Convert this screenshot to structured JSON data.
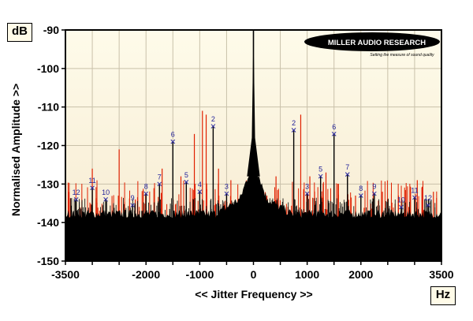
{
  "chart_data": {
    "type": "line",
    "title": "",
    "xlabel": "<< Jitter Frequency >>",
    "ylabel": "Normalised Amplitude >>",
    "x_unit": "Hz",
    "y_unit": "dB",
    "xlim": [
      -3500,
      3500
    ],
    "ylim": [
      -150,
      -90
    ],
    "x_ticks": [
      -3500,
      -2000,
      -1000,
      0,
      1000,
      2000,
      3500
    ],
    "x_tick_labels": [
      "-3500",
      "-2000",
      "-1000",
      "0",
      "1000",
      "2000",
      "3500"
    ],
    "y_ticks": [
      -90,
      -100,
      -110,
      -120,
      -130,
      -140,
      -150
    ],
    "y_tick_labels": [
      "-90",
      "-100",
      "-110",
      "-120",
      "-130",
      "-140",
      "-150"
    ],
    "grid": true,
    "noise_floor": -140,
    "central_peak": {
      "x": 0,
      "y": -90
    },
    "series": [
      {
        "name": "",
        "color": "#e02000",
        "points": [
          {
            "x": -3000,
            "y": -126
          },
          {
            "x": -2500,
            "y": -121
          },
          {
            "x": -2200,
            "y": -134
          },
          {
            "x": -1700,
            "y": -126
          },
          {
            "x": -1350,
            "y": -128
          },
          {
            "x": -1100,
            "y": -117
          },
          {
            "x": -950,
            "y": -111
          },
          {
            "x": -880,
            "y": -112
          },
          {
            "x": -650,
            "y": -126
          },
          {
            "x": -420,
            "y": -129
          },
          {
            "x": 250,
            "y": -133
          },
          {
            "x": 420,
            "y": -128
          },
          {
            "x": 880,
            "y": -112
          },
          {
            "x": 1050,
            "y": -128
          },
          {
            "x": 1350,
            "y": -127
          },
          {
            "x": 1900,
            "y": -133
          },
          {
            "x": 2400,
            "y": -132
          },
          {
            "x": 2700,
            "y": -133
          },
          {
            "x": 3050,
            "y": -129
          },
          {
            "x": 3350,
            "y": -132
          }
        ]
      },
      {
        "name": "",
        "color": "#000000",
        "points": [
          {
            "x": -3300,
            "y": -134,
            "label": "12"
          },
          {
            "x": -3000,
            "y": -131,
            "label": "11"
          },
          {
            "x": -2750,
            "y": -134,
            "label": "10"
          },
          {
            "x": -2250,
            "y": -135.5,
            "label": "9"
          },
          {
            "x": -2000,
            "y": -132.5,
            "label": "8"
          },
          {
            "x": -1750,
            "y": -130,
            "label": "7"
          },
          {
            "x": -1500,
            "y": -119,
            "label": "6"
          },
          {
            "x": -1250,
            "y": -129.5,
            "label": "5"
          },
          {
            "x": -1000,
            "y": -132,
            "label": "4"
          },
          {
            "x": -750,
            "y": -115,
            "label": "2"
          },
          {
            "x": -500,
            "y": -132.5,
            "label": "3"
          },
          {
            "x": 750,
            "y": -116,
            "label": "2"
          },
          {
            "x": 1000,
            "y": -132.5,
            "label": "3"
          },
          {
            "x": 1250,
            "y": -128,
            "label": "5"
          },
          {
            "x": 1500,
            "y": -117,
            "label": "6"
          },
          {
            "x": 1750,
            "y": -127.5,
            "label": "7"
          },
          {
            "x": 2000,
            "y": -133,
            "label": "8"
          },
          {
            "x": 2250,
            "y": -132.5,
            "label": "9"
          },
          {
            "x": 2750,
            "y": -136,
            "label": "10"
          },
          {
            "x": 3000,
            "y": -133.5,
            "label": "11"
          },
          {
            "x": 3250,
            "y": -135.5,
            "label": "12"
          }
        ]
      }
    ]
  },
  "logo": {
    "brand": "MILLER AUDIO RESEARCH",
    "tagline": "Setting the measure of sound quality"
  }
}
